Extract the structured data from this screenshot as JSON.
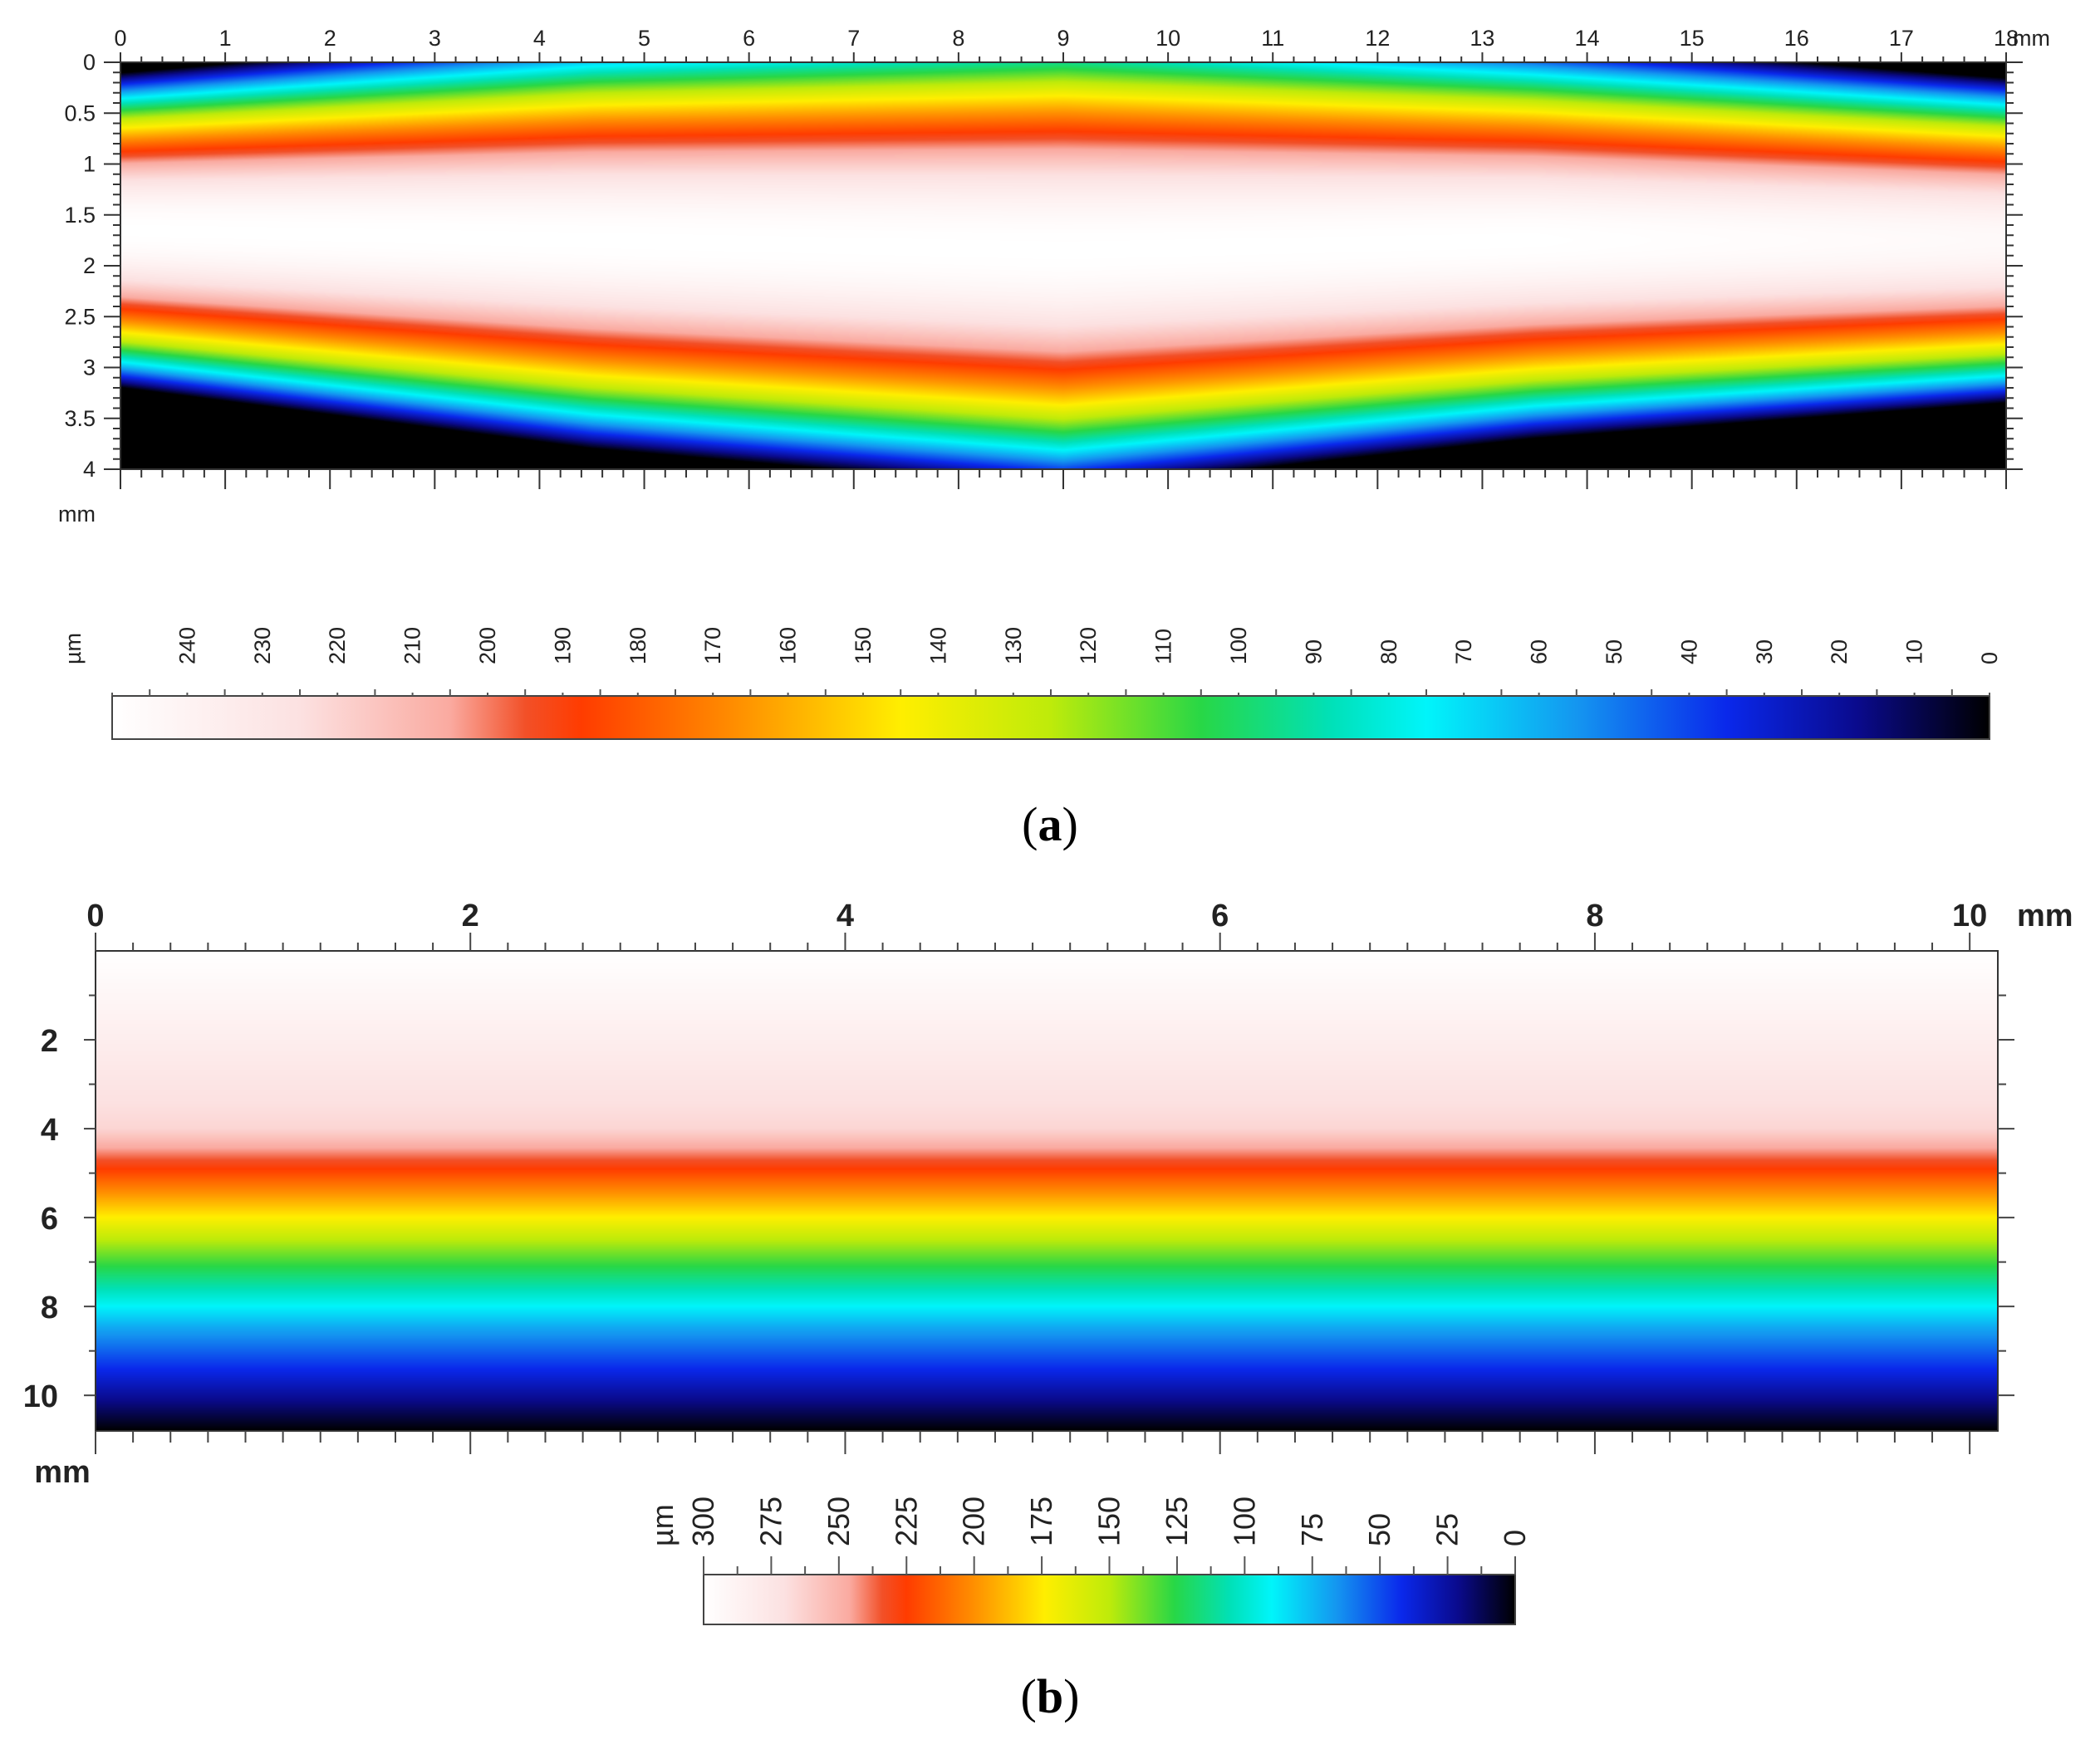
{
  "chart_data": [
    {
      "type": "heatmap",
      "panel_label": "a",
      "x_unit": "mm",
      "y_unit": "mm",
      "xlim": [
        0,
        18
      ],
      "ylim": [
        0,
        4
      ],
      "x_ticks": [
        "0",
        "1",
        "2",
        "3",
        "4",
        "5",
        "6",
        "7",
        "8",
        "9",
        "10",
        "11",
        "12",
        "13",
        "14",
        "15",
        "16",
        "17",
        "18"
      ],
      "y_ticks": [
        "0",
        "0.5",
        "1",
        "1.5",
        "2",
        "2.5",
        "3",
        "3.5",
        "4"
      ],
      "colorbar": {
        "unit": "µm",
        "range": [
          0,
          250
        ],
        "tick_labels": [
          "240",
          "230",
          "220",
          "210",
          "200",
          "190",
          "180",
          "170",
          "160",
          "150",
          "140",
          "130",
          "120",
          "110",
          "100",
          "90",
          "80",
          "70",
          "60",
          "50",
          "40",
          "30",
          "20",
          "10",
          "0"
        ]
      },
      "profile": {
        "description": "depth per y at selected x",
        "x": [
          0,
          4.5,
          9,
          13.5,
          18
        ],
        "peak_depth_um": [
          250,
          250,
          250,
          250,
          245
        ],
        "center_y_mm": [
          1.65,
          1.75,
          1.85,
          1.75,
          1.75
        ],
        "halfwidth_mm": [
          1.55,
          2.05,
          2.35,
          1.95,
          1.6
        ]
      }
    },
    {
      "type": "heatmap",
      "panel_label": "b",
      "x_unit": "mm",
      "y_unit": "mm",
      "xlim": [
        0,
        10
      ],
      "ylim": [
        0,
        10.8
      ],
      "x_ticks": [
        "0",
        "2",
        "4",
        "6",
        "8",
        "10"
      ],
      "y_ticks": [
        "2",
        "4",
        "6",
        "8",
        "10"
      ],
      "colorbar": {
        "unit": "µm",
        "range": [
          0,
          300
        ],
        "tick_labels": [
          "300",
          "275",
          "250",
          "225",
          "200",
          "175",
          "150",
          "125",
          "100",
          "75",
          "50",
          "25",
          "0"
        ]
      },
      "profile": {
        "description": "depth decreasing with y; nearly uniform along x",
        "y_mm": [
          0,
          4,
          4.8,
          6.5,
          8.5,
          10.8
        ],
        "depth_um": [
          300,
          265,
          230,
          150,
          70,
          0
        ]
      }
    }
  ]
}
